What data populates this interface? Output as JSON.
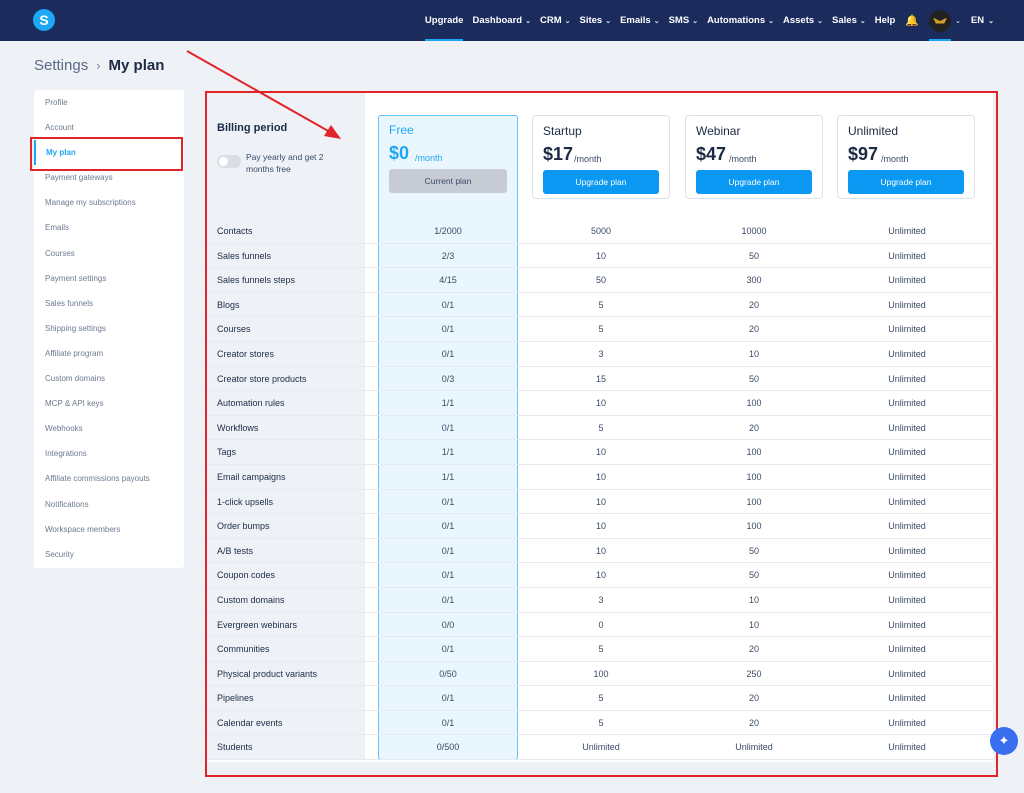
{
  "app": {
    "logo_letter": "S",
    "accent": "#1ea7f5",
    "nav_bg": "#1a2b5c",
    "annotation_color": "#e0242a"
  },
  "nav": {
    "items": [
      {
        "label": "Upgrade",
        "dropdown": false
      },
      {
        "label": "Dashboard",
        "dropdown": true
      },
      {
        "label": "CRM",
        "dropdown": true
      },
      {
        "label": "Sites",
        "dropdown": true
      },
      {
        "label": "Emails",
        "dropdown": true
      },
      {
        "label": "SMS",
        "dropdown": true
      },
      {
        "label": "Automations",
        "dropdown": true
      },
      {
        "label": "Assets",
        "dropdown": true
      },
      {
        "label": "Sales",
        "dropdown": true
      },
      {
        "label": "Help",
        "dropdown": false
      }
    ],
    "lang": "EN"
  },
  "breadcrumb": {
    "parent": "Settings",
    "current": "My plan"
  },
  "sidebar": {
    "items": [
      {
        "label": "Profile"
      },
      {
        "label": "Account"
      },
      {
        "label": "My plan",
        "active": true
      },
      {
        "label": "Payment gateways"
      },
      {
        "label": "Manage my subscriptions"
      },
      {
        "label": "Emails"
      },
      {
        "label": "Courses"
      },
      {
        "label": "Payment settings"
      },
      {
        "label": "Sales funnels"
      },
      {
        "label": "Shipping settings"
      },
      {
        "label": "Affiliate program"
      },
      {
        "label": "Custom domains"
      },
      {
        "label": "MCP & API keys"
      },
      {
        "label": "Webhooks"
      },
      {
        "label": "Integrations"
      },
      {
        "label": "Affiliate commissions payouts"
      },
      {
        "label": "Notifications"
      },
      {
        "label": "Workspace members"
      },
      {
        "label": "Security"
      }
    ]
  },
  "billing": {
    "title": "Billing period",
    "toggle_label": "Pay yearly and get 2 months free"
  },
  "plans": [
    {
      "name": "Free",
      "price": "$0",
      "per": "/month",
      "button": "Current plan"
    },
    {
      "name": "Startup",
      "price": "$17",
      "per": "/month",
      "button": "Upgrade plan"
    },
    {
      "name": "Webinar",
      "price": "$47",
      "per": "/month",
      "button": "Upgrade plan"
    },
    {
      "name": "Unlimited",
      "price": "$97",
      "per": "/month",
      "button": "Upgrade plan"
    }
  ],
  "features": [
    {
      "label": "Contacts",
      "values": [
        "1/2000",
        "5000",
        "10000",
        "Unlimited"
      ]
    },
    {
      "label": "Sales funnels",
      "values": [
        "2/3",
        "10",
        "50",
        "Unlimited"
      ]
    },
    {
      "label": "Sales funnels steps",
      "values": [
        "4/15",
        "50",
        "300",
        "Unlimited"
      ]
    },
    {
      "label": "Blogs",
      "values": [
        "0/1",
        "5",
        "20",
        "Unlimited"
      ]
    },
    {
      "label": "Courses",
      "values": [
        "0/1",
        "5",
        "20",
        "Unlimited"
      ]
    },
    {
      "label": "Creator stores",
      "values": [
        "0/1",
        "3",
        "10",
        "Unlimited"
      ]
    },
    {
      "label": "Creator store products",
      "values": [
        "0/3",
        "15",
        "50",
        "Unlimited"
      ]
    },
    {
      "label": "Automation rules",
      "values": [
        "1/1",
        "10",
        "100",
        "Unlimited"
      ]
    },
    {
      "label": "Workflows",
      "values": [
        "0/1",
        "5",
        "20",
        "Unlimited"
      ]
    },
    {
      "label": "Tags",
      "values": [
        "1/1",
        "10",
        "100",
        "Unlimited"
      ]
    },
    {
      "label": "Email campaigns",
      "values": [
        "1/1",
        "10",
        "100",
        "Unlimited"
      ]
    },
    {
      "label": "1-click upsells",
      "values": [
        "0/1",
        "10",
        "100",
        "Unlimited"
      ]
    },
    {
      "label": "Order bumps",
      "values": [
        "0/1",
        "10",
        "100",
        "Unlimited"
      ]
    },
    {
      "label": "A/B tests",
      "values": [
        "0/1",
        "10",
        "50",
        "Unlimited"
      ]
    },
    {
      "label": "Coupon codes",
      "values": [
        "0/1",
        "10",
        "50",
        "Unlimited"
      ]
    },
    {
      "label": "Custom domains",
      "values": [
        "0/1",
        "3",
        "10",
        "Unlimited"
      ]
    },
    {
      "label": "Evergreen webinars",
      "values": [
        "0/0",
        "0",
        "10",
        "Unlimited"
      ]
    },
    {
      "label": "Communities",
      "values": [
        "0/1",
        "5",
        "20",
        "Unlimited"
      ]
    },
    {
      "label": "Physical product variants",
      "values": [
        "0/50",
        "100",
        "250",
        "Unlimited"
      ]
    },
    {
      "label": "Pipelines",
      "values": [
        "0/1",
        "5",
        "20",
        "Unlimited"
      ]
    },
    {
      "label": "Calendar events",
      "values": [
        "0/1",
        "5",
        "20",
        "Unlimited"
      ]
    },
    {
      "label": "Students",
      "values": [
        "0/500",
        "Unlimited",
        "Unlimited",
        "Unlimited"
      ]
    }
  ],
  "icons": {
    "bell": "bell-icon",
    "chevron": "chevron-down-icon",
    "fab": "sparkle-icon",
    "avatar": "user-avatar"
  }
}
